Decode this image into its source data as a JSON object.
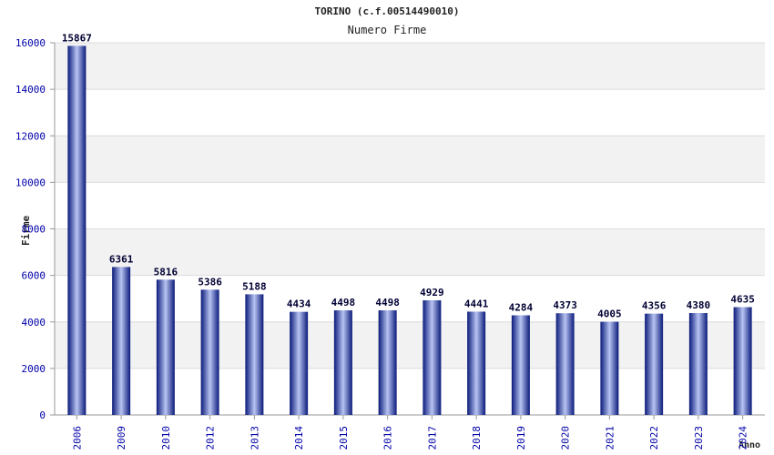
{
  "chart_data": {
    "type": "bar",
    "title": "TORINO (c.f.00514490010)",
    "subtitle": "Numero Firme",
    "xlabel": "Anno",
    "ylabel": "Firme",
    "categories": [
      "2006",
      "2009",
      "2010",
      "2012",
      "2013",
      "2014",
      "2015",
      "2016",
      "2017",
      "2018",
      "2019",
      "2020",
      "2021",
      "2022",
      "2023",
      "2024"
    ],
    "values": [
      15867,
      6361,
      5816,
      5386,
      5188,
      4434,
      4498,
      4498,
      4929,
      4441,
      4284,
      4373,
      4005,
      4356,
      4380,
      4635
    ],
    "ylim": [
      0,
      16000
    ],
    "yticks": [
      0,
      2000,
      4000,
      6000,
      8000,
      10000,
      12000,
      14000,
      16000
    ],
    "grid": true,
    "legend": "none",
    "colors": {
      "bar_dark": "#0a1a7a",
      "bar_light": "#b8c4f2",
      "tick_text": "#0000aa",
      "band": "#f2f2f2"
    }
  }
}
